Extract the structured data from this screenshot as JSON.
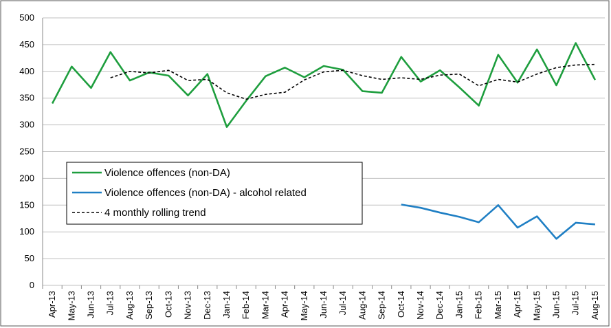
{
  "chart_data": {
    "type": "line",
    "categories": [
      "Apr-13",
      "May-13",
      "Jun-13",
      "Jul-13",
      "Aug-13",
      "Sep-13",
      "Oct-13",
      "Nov-13",
      "Dec-13",
      "Jan-14",
      "Feb-14",
      "Mar-14",
      "Apr-14",
      "May-14",
      "Jun-14",
      "Jul-14",
      "Aug-14",
      "Sep-14",
      "Oct-14",
      "Nov-14",
      "Dec-14",
      "Jan-15",
      "Feb-15",
      "Mar-15",
      "Apr-15",
      "May-15",
      "Jun-15",
      "Jul-15",
      "Aug-15"
    ],
    "series": [
      {
        "name": "Violence offences (non-DA)",
        "color": "#1e9e3e",
        "dash": false,
        "values": [
          340,
          409,
          369,
          436,
          383,
          398,
          392,
          355,
          395,
          296,
          345,
          391,
          407,
          389,
          410,
          403,
          363,
          360,
          427,
          381,
          402,
          370,
          336,
          431,
          379,
          441,
          374,
          453,
          384
        ]
      },
      {
        "name": "Violence offences (non-DA) - alcohol related",
        "color": "#1f7fc4",
        "dash": false,
        "values": [
          null,
          null,
          null,
          null,
          null,
          null,
          null,
          null,
          null,
          null,
          null,
          null,
          null,
          null,
          null,
          null,
          null,
          null,
          151,
          145,
          136,
          128,
          118,
          150,
          108,
          129,
          87,
          117,
          114
        ]
      },
      {
        "name": "4 monthly rolling trend",
        "color": "#000000",
        "dash": true,
        "values": [
          null,
          null,
          null,
          388,
          400,
          397,
          402,
          383,
          385,
          360,
          348,
          357,
          361,
          384,
          399,
          402,
          392,
          385,
          388,
          385,
          393,
          395,
          373,
          385,
          380,
          395,
          407,
          412,
          413
        ]
      }
    ],
    "ylim": [
      0,
      500
    ],
    "yticks": [
      0,
      50,
      100,
      150,
      200,
      250,
      300,
      350,
      400,
      450,
      500
    ],
    "grid": true
  }
}
